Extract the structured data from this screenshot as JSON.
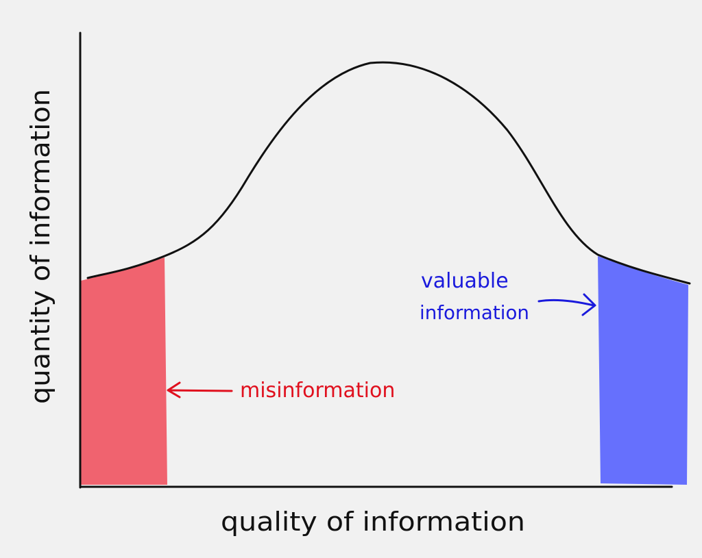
{
  "axes": {
    "x_label": "quality of information",
    "y_label": "quantity of information"
  },
  "annotations": {
    "left_region": "misinformation",
    "right_region_line1": "valuable",
    "right_region_line2": "information"
  },
  "colors": {
    "background": "#f1f1f1",
    "ink": "#111111",
    "misinformation": "#f0636f",
    "valuable": "#6670fd",
    "misinformation_text": "#e0101e",
    "valuable_text": "#1a1adc"
  }
}
